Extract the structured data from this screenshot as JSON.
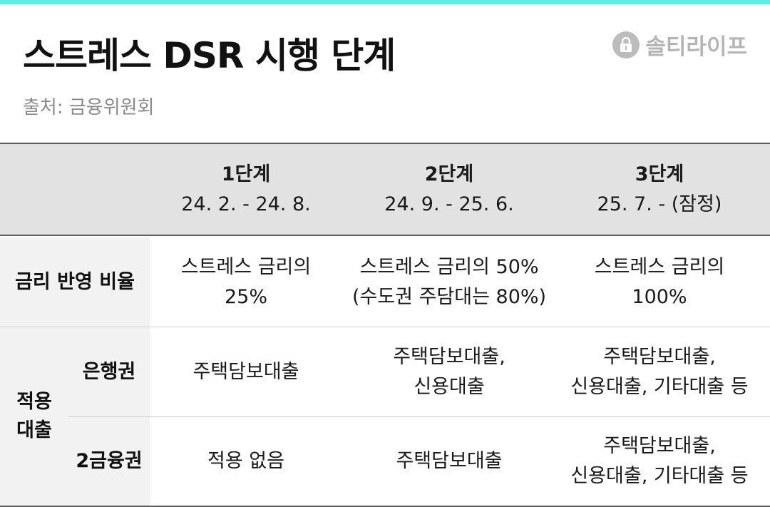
{
  "title": "스트레스 DSR 시행 단계",
  "source": "출처: 금융위원회",
  "brand": {
    "name": "솔티라이프",
    "logo_icon": "lock-icon"
  },
  "accent_color": "#5ef0dc",
  "stages": [
    {
      "name": "1단계",
      "period": "24. 2. - 24. 8."
    },
    {
      "name": "2단계",
      "period": "24. 9. - 25. 6."
    },
    {
      "name": "3단계",
      "period": "25. 7. - (잠정)"
    }
  ],
  "rows": {
    "ratio": {
      "label": "금리 반영 비율",
      "values": [
        [
          "스트레스 금리의",
          "25%"
        ],
        [
          "스트레스 금리의 50%",
          "(수도권 주담대는 80%)"
        ],
        [
          "스트레스 금리의",
          "100%"
        ]
      ]
    },
    "loans": {
      "label_line1": "적용",
      "label_line2": "대출",
      "bank": {
        "label": "은행권",
        "values": [
          [
            "주택담보대출"
          ],
          [
            "주택담보대출,",
            "신용대출"
          ],
          [
            "주택담보대출,",
            "신용대출, 기타대출 등"
          ]
        ]
      },
      "second_tier": {
        "label": "2금융권",
        "values": [
          [
            "적용 없음"
          ],
          [
            "주택담보대출"
          ],
          [
            "주택담보대출,",
            "신용대출, 기타대출 등"
          ]
        ]
      }
    }
  }
}
